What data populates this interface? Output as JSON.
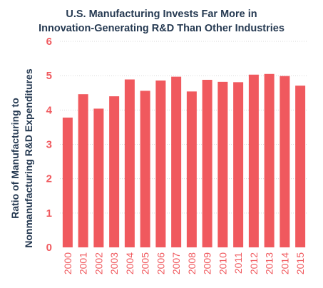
{
  "chart_data": {
    "type": "bar",
    "title_lines": [
      "U.S. Manufacturing Invests Far More in",
      "Innovation-Generating R&D Than Other Industries"
    ],
    "xlabel": "",
    "ylabel_lines": [
      "Ratio of Manufacturing to",
      "Nonmanufacturing R&D Expenditures"
    ],
    "categories": [
      "2000",
      "2001",
      "2002",
      "2003",
      "2004",
      "2005",
      "2006",
      "2007",
      "2008",
      "2009",
      "2010",
      "2011",
      "2012",
      "2013",
      "2014",
      "2015"
    ],
    "values": [
      3.78,
      4.46,
      4.04,
      4.4,
      4.89,
      4.56,
      4.86,
      4.97,
      4.54,
      4.88,
      4.82,
      4.81,
      5.03,
      5.05,
      4.99,
      4.71
    ],
    "ylim": [
      0,
      6
    ],
    "yticks": [
      "0",
      "1",
      "2",
      "3",
      "4",
      "5",
      "6"
    ],
    "grid": true,
    "legend": "none",
    "colors": {
      "bar": "#f0595e",
      "tick_text": "#f0595e",
      "title_text": "#263a52",
      "grid": "#d9d9d9"
    }
  }
}
